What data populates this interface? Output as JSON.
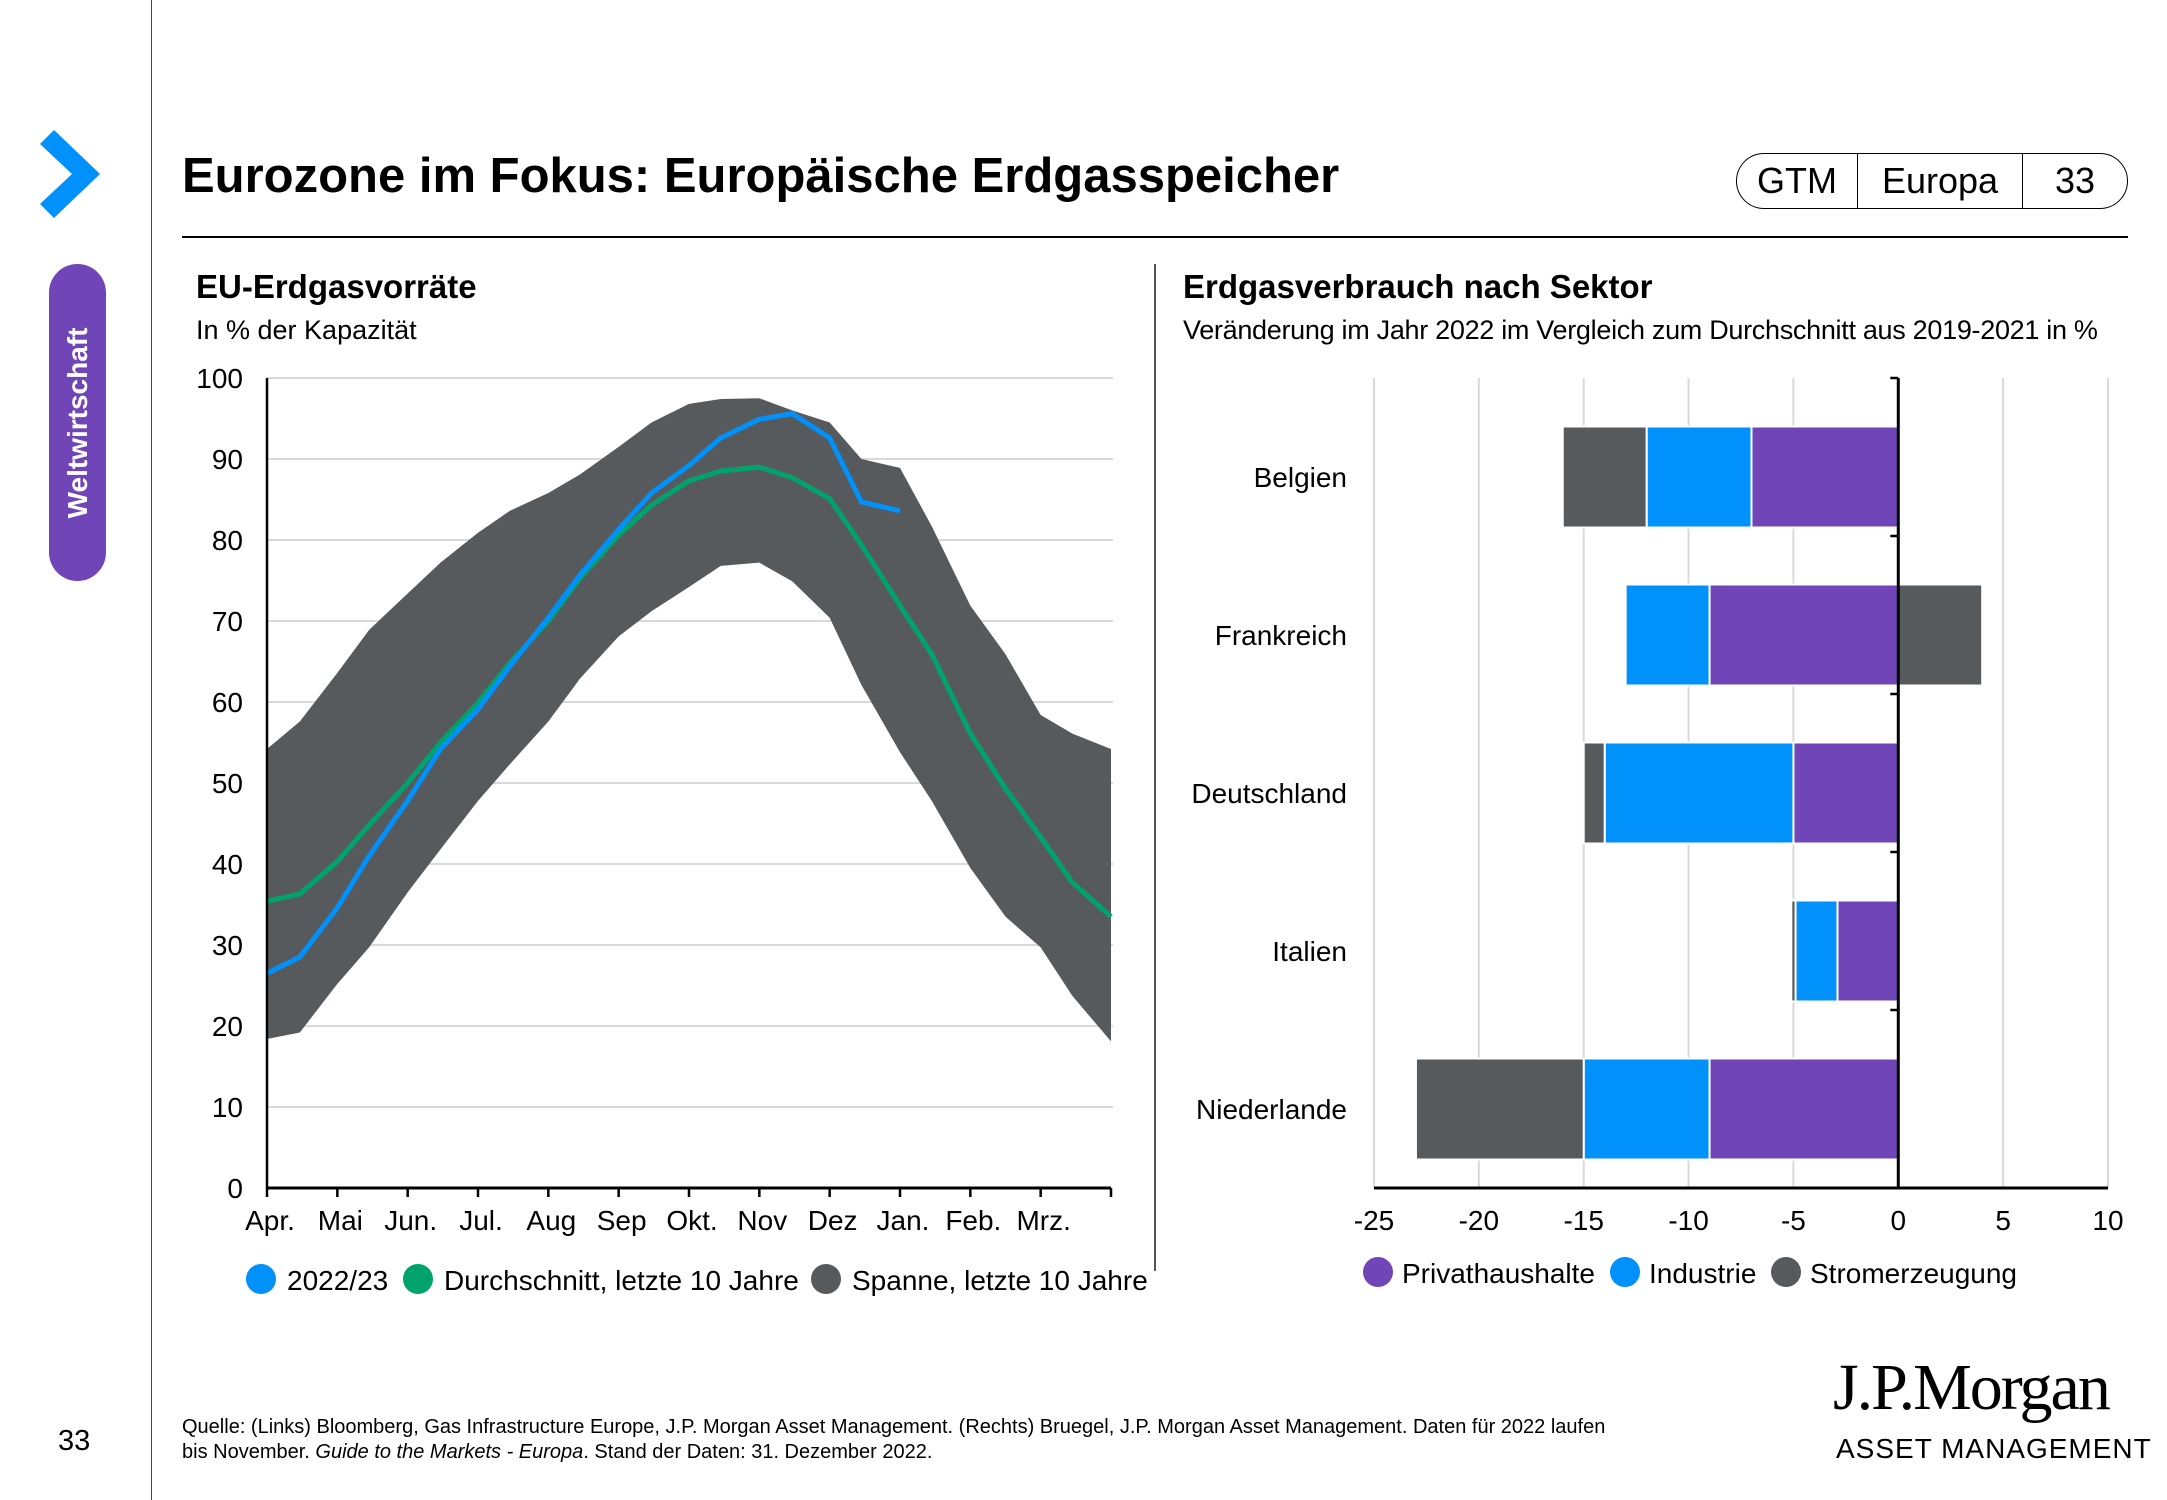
{
  "sidebar": {
    "section_label": "Weltwirtschaft",
    "page_number": "33",
    "accent_color": "#0091fa",
    "pill_color": "#6f45b8"
  },
  "header": {
    "title": "Eurozone im Fokus: Europäische Erdgasspeicher",
    "badge": [
      "GTM",
      "Europa",
      "33"
    ]
  },
  "footer": {
    "source_line1": "Quelle: (Links) Bloomberg, Gas Infrastructure Europe, J.P. Morgan Asset Management. (Rechts) Bruegel, J.P. Morgan Asset Management. Daten für 2022 laufen",
    "source_line2_a": "bis November. ",
    "source_line2_b": "Guide to the Markets - Europa",
    "source_line2_c": ". Stand der Daten: 31. Dezember 2022.",
    "logo_name": "J.P.Morgan",
    "logo_sub": "ASSET MANAGEMENT"
  },
  "chart_data": [
    {
      "type": "area",
      "title": "EU-Erdgasvorräte",
      "subtitle": "In % der Kapazität",
      "ylim": [
        0,
        100
      ],
      "yticks": [
        0,
        10,
        20,
        30,
        40,
        50,
        60,
        70,
        80,
        90,
        100
      ],
      "xticks": [
        "Apr.",
        "Mai",
        "Jun.",
        "Jul.",
        "Aug",
        "Sep",
        "Okt.",
        "Nov",
        "Dez",
        "Jan.",
        "Feb.",
        "Mrz."
      ],
      "grid": true,
      "legend_position": "bottom",
      "x": [
        "01.04",
        "15.04",
        "01.05",
        "15.05",
        "01.06",
        "15.06",
        "01.07",
        "15.07",
        "01.08",
        "15.08",
        "01.09",
        "15.09",
        "01.10",
        "15.10",
        "01.11",
        "15.11",
        "01.12",
        "15.12",
        "01.01",
        "15.01",
        "01.02",
        "15.02",
        "01.03",
        "15.03",
        "31.03"
      ],
      "series": [
        {
          "name": "Spanne, letzte 10 Jahre",
          "color": "#575a5d",
          "kind": "band",
          "upper": [
            54.2,
            57.6,
            63.6,
            68.9,
            73.4,
            77.2,
            80.9,
            83.6,
            85.8,
            88.1,
            91.5,
            94.5,
            96.8,
            97.4,
            97.5,
            96.0,
            94.5,
            90.0,
            88.9,
            81.7,
            71.9,
            65.9,
            58.4,
            56.1,
            54.2
          ],
          "lower": [
            18.4,
            19.2,
            25.2,
            29.7,
            36.5,
            41.8,
            47.8,
            52.3,
            57.6,
            62.9,
            68.1,
            71.2,
            74.2,
            76.8,
            77.2,
            74.9,
            70.4,
            62.1,
            53.8,
            47.8,
            39.5,
            33.5,
            29.7,
            23.7,
            18.1
          ]
        },
        {
          "name": "Durchschnitt, letzte 10 Jahre",
          "color": "#00a36c",
          "kind": "line",
          "values": [
            35.4,
            36.3,
            40.3,
            44.8,
            50.0,
            55.0,
            59.9,
            64.8,
            70.0,
            75.3,
            80.6,
            84.3,
            87.3,
            88.5,
            89.0,
            87.7,
            85.1,
            79.4,
            71.9,
            65.9,
            56.1,
            49.3,
            43.3,
            37.7,
            33.5
          ]
        },
        {
          "name": "2022/23",
          "color": "#0091fa",
          "kind": "line",
          "values": [
            26.5,
            28.5,
            34.6,
            41.0,
            47.8,
            54.2,
            59.1,
            64.4,
            70.4,
            75.7,
            81.3,
            85.8,
            89.2,
            92.6,
            94.9,
            95.6,
            92.6,
            84.7,
            83.6,
            null,
            null,
            null,
            null,
            null,
            null
          ]
        }
      ]
    },
    {
      "type": "bar",
      "orientation": "horizontal",
      "stacked": true,
      "title": "Erdgasverbrauch nach Sektor",
      "subtitle": "Veränderung im Jahr 2022 im Vergleich zum Durchschnitt aus 2019-2021 in %",
      "xlim": [
        -25,
        10
      ],
      "xticks": [
        -25,
        -20,
        -15,
        -10,
        -5,
        0,
        5,
        10
      ],
      "grid": true,
      "legend_position": "bottom",
      "categories": [
        "Belgien",
        "Frankreich",
        "Deutschland",
        "Italien",
        "Niederlande"
      ],
      "series": [
        {
          "name": "Privathaushalte",
          "color": "#6f45b8",
          "values": [
            -7,
            -9,
            -5,
            -2.9,
            -9
          ]
        },
        {
          "name": "Industrie",
          "color": "#0091fa",
          "values": [
            -5,
            -4,
            -9,
            -2.0,
            -6
          ]
        },
        {
          "name": "Stromerzeugung",
          "color": "#575a5d",
          "values": [
            -4,
            4,
            -1,
            -0.2,
            -8
          ]
        }
      ]
    }
  ]
}
